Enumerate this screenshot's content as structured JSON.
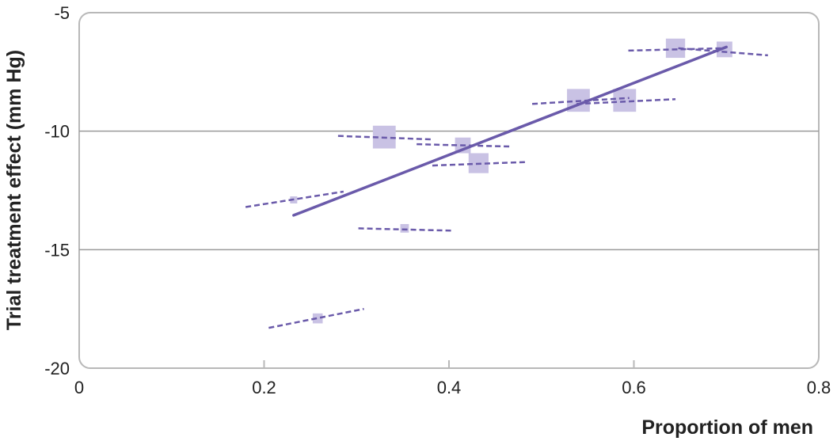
{
  "chart_data": {
    "type": "scatter",
    "title": "",
    "xlabel": "Proportion of men",
    "ylabel": "Trial treatment effect (mm Hg)",
    "xlim": [
      0,
      0.8
    ],
    "ylim": [
      -20,
      -5
    ],
    "x_ticks": [
      0,
      0.2,
      0.4,
      0.6,
      0.8
    ],
    "x_tick_labels": [
      "0",
      "0.2",
      "0.4",
      "0.6",
      "0.8"
    ],
    "y_ticks": [
      -20,
      -15,
      -10,
      -5
    ],
    "y_tick_labels": [
      "-20",
      "-15",
      "-10",
      "-5"
    ],
    "grid": "horizontal",
    "legend": "none",
    "colors": {
      "marker": "#c9c2e4",
      "line": "#6a5aaa",
      "grid": "#9a9a9a",
      "frame": "#b8b8b8"
    },
    "points": [
      {
        "x": 0.232,
        "y": -12.9,
        "weight": 1,
        "line": {
          "x1": 0.18,
          "y1": -13.2,
          "x2": 0.286,
          "y2": -12.55
        }
      },
      {
        "x": 0.258,
        "y": -17.9,
        "weight": 1.4,
        "line": {
          "x1": 0.205,
          "y1": -18.3,
          "x2": 0.308,
          "y2": -17.5
        }
      },
      {
        "x": 0.33,
        "y": -10.25,
        "weight": 3.2,
        "line": {
          "x1": 0.28,
          "y1": -10.2,
          "x2": 0.383,
          "y2": -10.35
        }
      },
      {
        "x": 0.352,
        "y": -14.1,
        "weight": 1.2,
        "line": {
          "x1": 0.302,
          "y1": -14.1,
          "x2": 0.405,
          "y2": -14.2
        }
      },
      {
        "x": 0.415,
        "y": -10.6,
        "weight": 2.2,
        "line": {
          "x1": 0.365,
          "y1": -10.55,
          "x2": 0.468,
          "y2": -10.65
        }
      },
      {
        "x": 0.432,
        "y": -11.35,
        "weight": 2.8,
        "line": {
          "x1": 0.382,
          "y1": -11.45,
          "x2": 0.485,
          "y2": -11.3
        }
      },
      {
        "x": 0.54,
        "y": -8.7,
        "weight": 3.2,
        "line": {
          "x1": 0.49,
          "y1": -8.85,
          "x2": 0.595,
          "y2": -8.6
        }
      },
      {
        "x": 0.59,
        "y": -8.7,
        "weight": 3.2,
        "line": {
          "x1": 0.538,
          "y1": -8.85,
          "x2": 0.645,
          "y2": -8.65
        }
      },
      {
        "x": 0.645,
        "y": -6.5,
        "weight": 2.7,
        "line": {
          "x1": 0.594,
          "y1": -6.6,
          "x2": 0.698,
          "y2": -6.5
        }
      },
      {
        "x": 0.698,
        "y": -6.55,
        "weight": 2.2,
        "line": {
          "x1": 0.648,
          "y1": -6.5,
          "x2": 0.745,
          "y2": -6.8
        }
      }
    ],
    "regression_line": {
      "x1": 0.232,
      "y1": -13.55,
      "x2": 0.7,
      "y2": -6.45
    }
  }
}
